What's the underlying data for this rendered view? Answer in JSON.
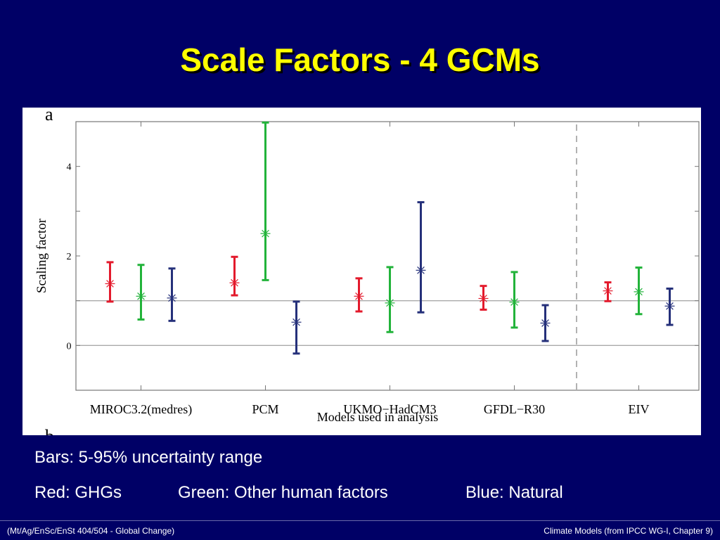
{
  "slide": {
    "title": "Scale Factors - 4 GCMs",
    "caption_bars": "Bars:  5-95% uncertainty range",
    "caption_red": "Red:  GHGs",
    "caption_green": "Green:  Other human factors",
    "caption_blue": "Blue:  Natural",
    "footer_left": "(Mt/Ag/EnSc/EnSt 404/504 - Global Change)",
    "footer_right": "Climate Models  (from IPCC WG-I, Chapter 9)"
  },
  "chart_data": {
    "type": "errorbar",
    "panel_letter": "a",
    "next_panel_letter": "b",
    "ylabel": "Scaling factor",
    "xlabel": "Models used in analysis",
    "ylim": [
      -1,
      5
    ],
    "yticks": [
      0,
      2,
      4
    ],
    "reference_lines": [
      0,
      1
    ],
    "categories": [
      "MIROC3.2(medres)",
      "PCM",
      "UKMO−HadCM3",
      "GFDL−R30",
      "EIV"
    ],
    "separator_after_category": 3,
    "colors": {
      "GHGs": "#e31a2c",
      "Other": "#22b33a",
      "Natural": "#25307a"
    },
    "series": [
      {
        "key": "GHGs",
        "best": [
          1.38,
          1.4,
          1.1,
          1.05,
          1.22
        ],
        "low": [
          0.98,
          1.12,
          0.76,
          0.8,
          0.99
        ],
        "high": [
          1.86,
          1.98,
          1.5,
          1.33,
          1.41
        ]
      },
      {
        "key": "Other",
        "best": [
          1.1,
          2.5,
          0.95,
          0.97,
          1.2
        ],
        "low": [
          0.58,
          1.46,
          0.3,
          0.4,
          0.7
        ],
        "high": [
          1.8,
          4.98,
          1.75,
          1.64,
          1.74
        ]
      },
      {
        "key": "Natural",
        "best": [
          1.06,
          0.52,
          1.68,
          0.5,
          0.88
        ],
        "low": [
          0.55,
          -0.18,
          0.74,
          0.1,
          0.46
        ],
        "high": [
          1.72,
          0.98,
          3.2,
          0.9,
          1.27
        ]
      }
    ]
  }
}
